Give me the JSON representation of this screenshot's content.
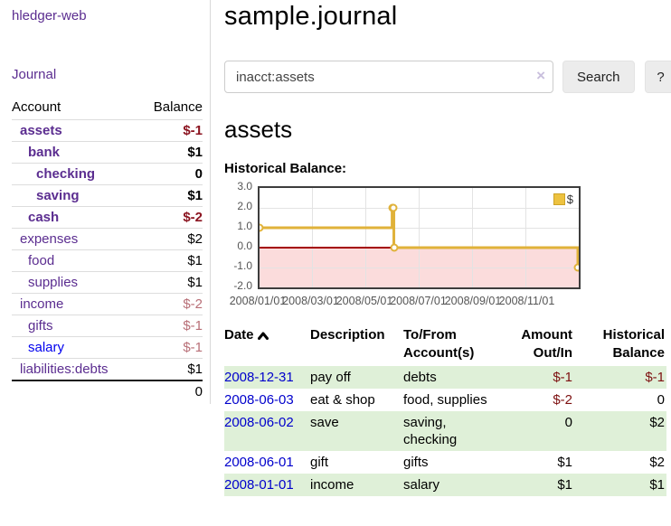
{
  "app": {
    "brand": "hledger-web",
    "journal_link": "Journal"
  },
  "sidebar": {
    "columns": {
      "account": "Account",
      "balance": "Balance"
    },
    "accounts": [
      {
        "name": "assets",
        "level": 1,
        "bold": true,
        "balance": "$-1",
        "neg": "strong",
        "link_color": "purple"
      },
      {
        "name": "bank",
        "level": 2,
        "bold": true,
        "balance": "$1",
        "neg": "none",
        "link_color": "purple"
      },
      {
        "name": "checking",
        "level": 3,
        "bold": true,
        "balance": "0",
        "neg": "none",
        "link_color": "purple"
      },
      {
        "name": "saving",
        "level": 3,
        "bold": true,
        "balance": "$1",
        "neg": "none",
        "link_color": "purple"
      },
      {
        "name": "cash",
        "level": 2,
        "bold": true,
        "balance": "$-2",
        "neg": "strong",
        "link_color": "purple"
      },
      {
        "name": "expenses",
        "level": 1,
        "bold": false,
        "balance": "$2",
        "neg": "none",
        "link_color": "purple"
      },
      {
        "name": "food",
        "level": 2,
        "bold": false,
        "balance": "$1",
        "neg": "none",
        "link_color": "purple"
      },
      {
        "name": "supplies",
        "level": 2,
        "bold": false,
        "balance": "$1",
        "neg": "none",
        "link_color": "purple"
      },
      {
        "name": "income",
        "level": 1,
        "bold": false,
        "balance": "$-2",
        "neg": "soft",
        "link_color": "purple"
      },
      {
        "name": "gifts",
        "level": 2,
        "bold": false,
        "balance": "$-1",
        "neg": "soft",
        "link_color": "purple"
      },
      {
        "name": "salary",
        "level": 2,
        "bold": false,
        "balance": "$-1",
        "neg": "soft",
        "link_color": "blue"
      },
      {
        "name": "liabilities:debts",
        "level": 1,
        "bold": false,
        "balance": "$1",
        "neg": "none",
        "link_color": "purple"
      }
    ],
    "total": "0"
  },
  "header": {
    "title": "sample.journal"
  },
  "search": {
    "value": "inacct:assets",
    "clear_icon": "×",
    "search_label": "Search",
    "help_label": "?"
  },
  "account_view": {
    "heading": "assets",
    "chart_title": "Historical Balance:"
  },
  "chart_data": {
    "type": "line",
    "style": "step",
    "title": "Historical Balance",
    "series": [
      {
        "name": "$",
        "color": "#e0b23a",
        "points": [
          {
            "date": "2008-01-01",
            "value": 1
          },
          {
            "date": "2008-06-01",
            "value": 2
          },
          {
            "date": "2008-06-02",
            "value": 2
          },
          {
            "date": "2008-06-03",
            "value": 0
          },
          {
            "date": "2008-12-31",
            "value": -1
          }
        ]
      }
    ],
    "xlim": [
      "2008-01-01",
      "2009-01-01"
    ],
    "ylim": [
      -2,
      3
    ],
    "y_ticks": [
      3,
      2,
      1,
      0,
      -1,
      -2
    ],
    "y_tick_labels": [
      "3.0",
      "2.0",
      "1.0",
      "0.0",
      "-1.0",
      "-2.0"
    ],
    "x_ticks": [
      "2008-01-01",
      "2008-03-01",
      "2008-05-01",
      "2008-07-01",
      "2008-09-01",
      "2008-11-01"
    ],
    "x_tick_labels": [
      "2008/01/01",
      "2008/03/01",
      "2008/05/01",
      "2008/07/01",
      "2008/09/01",
      "2008/11/01"
    ],
    "legend": {
      "label": "$",
      "position": "top-right"
    },
    "grid": true,
    "negative_region_color": "#fbdcdc",
    "zero_line_color": "#a40000"
  },
  "register": {
    "headers": [
      {
        "label": "Date",
        "sort": "asc",
        "align": "left"
      },
      {
        "label": "Description",
        "align": "left"
      },
      {
        "label": "To/From\nAccount(s)",
        "align": "left"
      },
      {
        "label": "Amount\nOut/In",
        "align": "right"
      },
      {
        "label": "Historical\nBalance",
        "align": "right"
      }
    ],
    "rows": [
      {
        "date": "2008-12-31",
        "description": "pay off",
        "accounts": "debts",
        "amount": "$-1",
        "amount_neg": true,
        "balance": "$-1",
        "balance_neg": true,
        "highlight": true
      },
      {
        "date": "2008-06-03",
        "description": "eat & shop",
        "accounts": "food, supplies",
        "amount": "$-2",
        "amount_neg": true,
        "balance": "0",
        "balance_neg": false,
        "highlight": false
      },
      {
        "date": "2008-06-02",
        "description": "save",
        "accounts": "saving, checking",
        "amount": "0",
        "amount_neg": false,
        "balance": "$2",
        "balance_neg": false,
        "highlight": true
      },
      {
        "date": "2008-06-01",
        "description": "gift",
        "accounts": "gifts",
        "amount": "$1",
        "amount_neg": false,
        "balance": "$2",
        "balance_neg": false,
        "highlight": false
      },
      {
        "date": "2008-01-01",
        "description": "income",
        "accounts": "salary",
        "amount": "$1",
        "amount_neg": false,
        "balance": "$1",
        "balance_neg": false,
        "highlight": true
      }
    ]
  },
  "colors": {
    "accent_purple": "#5b2d90",
    "link_blue": "#0000cc",
    "negative_strong": "#8b1420",
    "negative_soft": "#b86f77",
    "row_highlight_green": "#dff0d8",
    "series_gold": "#e0b23a"
  }
}
